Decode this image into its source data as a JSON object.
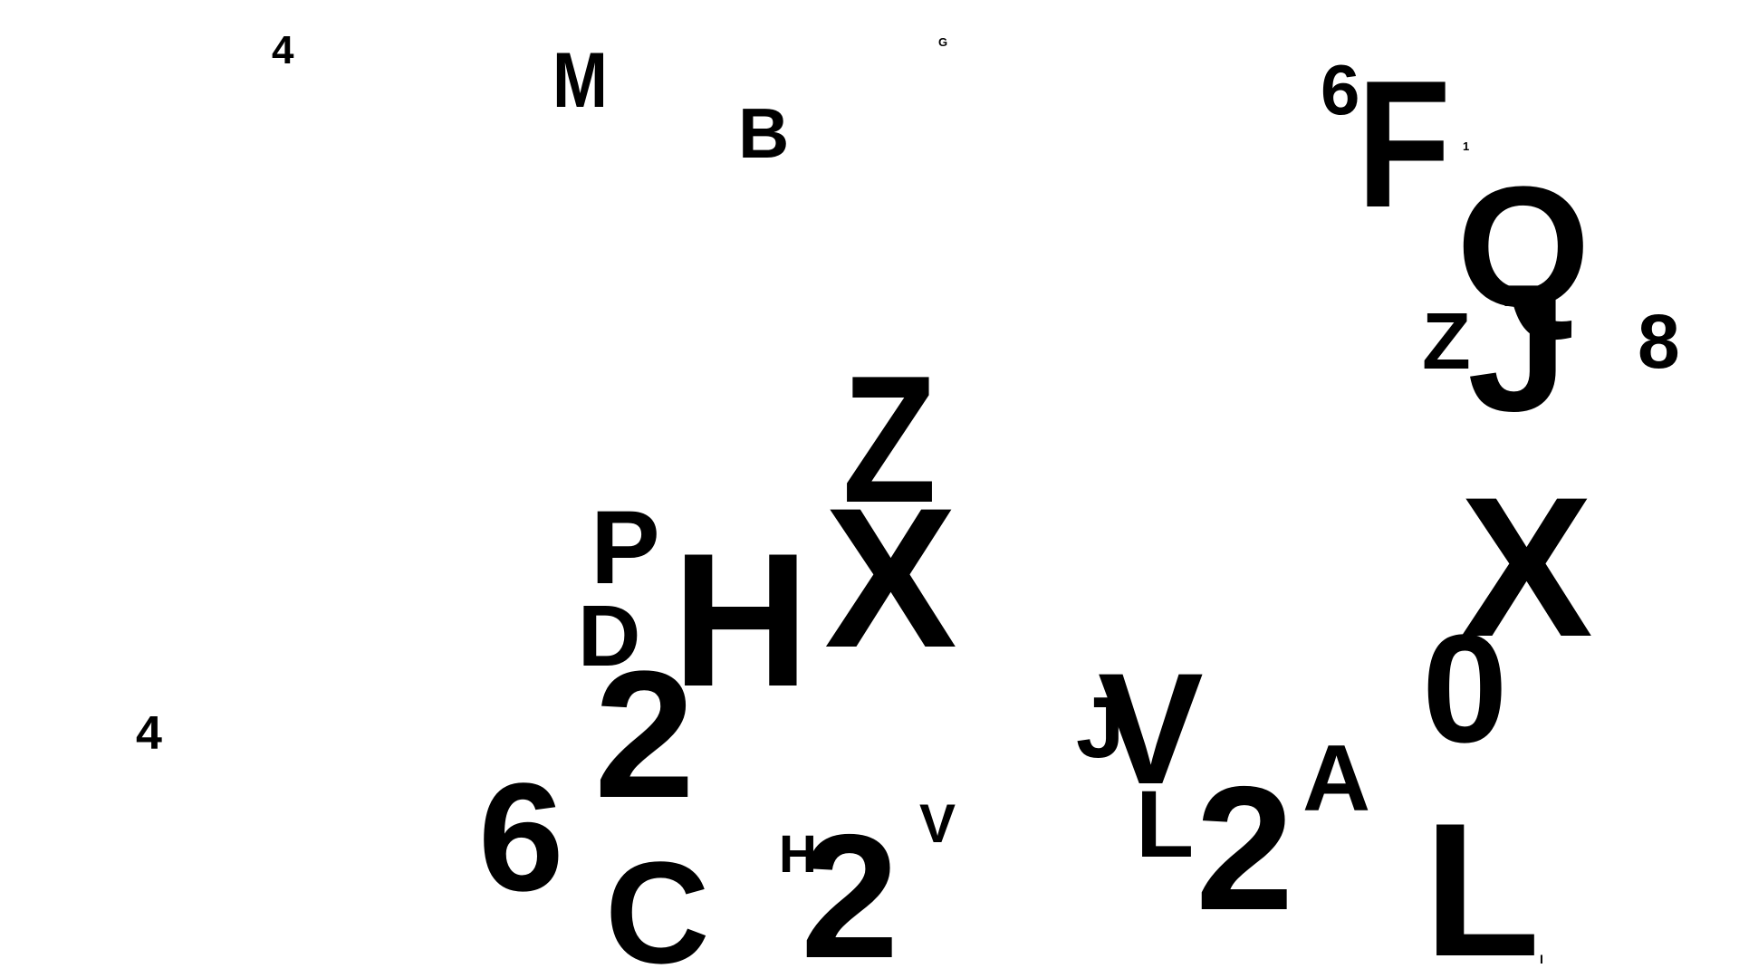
{
  "glyphs": [
    {
      "id": "g01",
      "char": "4"
    },
    {
      "id": "g02",
      "char": "M"
    },
    {
      "id": "g03",
      "char": "G"
    },
    {
      "id": "g04",
      "char": "B"
    },
    {
      "id": "g05",
      "char": "6"
    },
    {
      "id": "g06",
      "char": "F"
    },
    {
      "id": "g07",
      "char": "1"
    },
    {
      "id": "g08",
      "char": "Q"
    },
    {
      "id": "g09",
      "char": "Z"
    },
    {
      "id": "g10",
      "char": "J"
    },
    {
      "id": "g11",
      "char": "8"
    },
    {
      "id": "g12",
      "char": "Z"
    },
    {
      "id": "g13",
      "char": "P"
    },
    {
      "id": "g14",
      "char": "H"
    },
    {
      "id": "g15",
      "char": "X"
    },
    {
      "id": "g16",
      "char": "X"
    },
    {
      "id": "g17",
      "char": "D"
    },
    {
      "id": "g18",
      "char": "2"
    },
    {
      "id": "g19",
      "char": "0"
    },
    {
      "id": "g20",
      "char": "V"
    },
    {
      "id": "g21",
      "char": "J"
    },
    {
      "id": "g22",
      "char": "4"
    },
    {
      "id": "g23",
      "char": "A"
    },
    {
      "id": "g24",
      "char": "6"
    },
    {
      "id": "g25",
      "char": "L"
    },
    {
      "id": "g26",
      "char": "2"
    },
    {
      "id": "g27",
      "char": "V"
    },
    {
      "id": "g28",
      "char": "H"
    },
    {
      "id": "g29",
      "char": "2"
    },
    {
      "id": "g30",
      "char": "L"
    },
    {
      "id": "g31",
      "char": "C"
    },
    {
      "id": "g32",
      "char": "I"
    }
  ]
}
